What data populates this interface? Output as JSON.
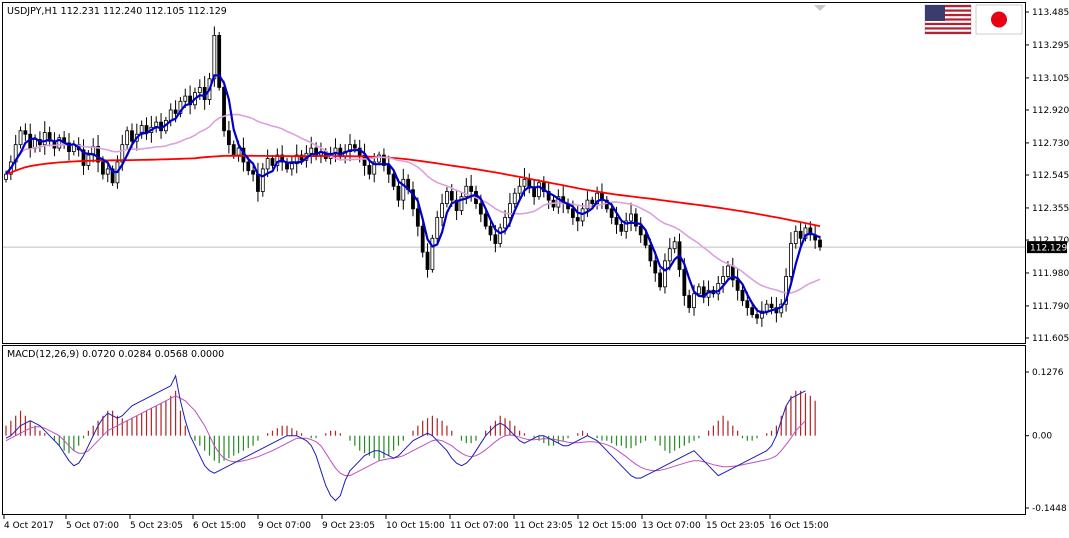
{
  "chart_data": {
    "type": "candlestick",
    "main_panel": {
      "header": "USDJPY,H1  112.231 112.240 112.105 112.129",
      "y_ticks": [
        "113.485",
        "113.295",
        "113.105",
        "112.920",
        "112.730",
        "112.545",
        "112.355",
        "112.170",
        "111.980",
        "111.790",
        "111.605"
      ],
      "ylim": [
        111.605,
        113.485
      ],
      "current_price_label": "112.129",
      "current_price": 112.129,
      "close_series": [
        112.55,
        112.62,
        112.72,
        112.8,
        112.78,
        112.7,
        112.75,
        112.72,
        112.79,
        112.74,
        112.7,
        112.76,
        112.73,
        112.68,
        112.72,
        112.69,
        112.6,
        112.66,
        112.71,
        112.62,
        112.55,
        112.58,
        112.5,
        112.62,
        112.72,
        112.8,
        112.74,
        112.78,
        112.83,
        112.79,
        112.82,
        112.85,
        112.8,
        112.86,
        112.92,
        112.9,
        112.97,
        113.0,
        112.95,
        113.02,
        113.05,
        112.98,
        113.1,
        113.35,
        113.05,
        112.8,
        112.72,
        112.66,
        112.7,
        112.62,
        112.57,
        112.55,
        112.45,
        112.58,
        112.64,
        112.6,
        112.66,
        112.62,
        112.58,
        112.61,
        112.66,
        112.63,
        112.67,
        112.7,
        112.66,
        112.68,
        112.64,
        112.67,
        112.7,
        112.65,
        112.68,
        112.72,
        112.7,
        112.66,
        112.6,
        112.55,
        112.62,
        112.66,
        112.6,
        112.55,
        112.48,
        112.4,
        112.52,
        112.46,
        112.35,
        112.25,
        112.1,
        112.0,
        112.18,
        112.3,
        112.38,
        112.45,
        112.4,
        112.34,
        112.42,
        112.48,
        112.45,
        112.38,
        112.32,
        112.25,
        112.2,
        112.15,
        112.24,
        112.3,
        112.38,
        112.44,
        112.48,
        112.52,
        112.47,
        112.42,
        112.5,
        112.45,
        112.4,
        112.36,
        112.42,
        112.38,
        112.35,
        112.3,
        112.28,
        112.35,
        112.4,
        112.38,
        112.44,
        112.4,
        112.35,
        112.3,
        112.26,
        112.22,
        112.28,
        112.32,
        112.25,
        112.2,
        112.14,
        112.05,
        111.98,
        111.9,
        112.05,
        112.12,
        112.16,
        112.0,
        111.85,
        111.78,
        111.86,
        111.9,
        111.84,
        111.88,
        111.86,
        111.92,
        111.96,
        112.02,
        111.94,
        111.88,
        111.82,
        111.78,
        111.74,
        111.72,
        111.76,
        111.8,
        111.78,
        111.75,
        111.8,
        111.96,
        112.15,
        112.22,
        112.18,
        112.24,
        112.2,
        112.17,
        112.13
      ],
      "series": [
        {
          "name": "SMA fast",
          "color": "#0000cc",
          "width": 2.2,
          "period": 4
        },
        {
          "name": "SMA mid",
          "color": "#dda0dd",
          "width": 1.6,
          "period": 24
        },
        {
          "name": "SMA slow",
          "color": "#ff0000",
          "width": 1.8,
          "period": 200
        }
      ],
      "colors": {
        "candle": "#000000",
        "grid_line": "#c0c0c0"
      }
    },
    "macd_panel": {
      "header": "MACD(12,26,9) 0.0720 0.0284 0.0568 0.0000",
      "y_ticks": [
        "0.1276",
        "0.00",
        "-0.1448"
      ],
      "ylim": [
        -0.1448,
        0.1276
      ],
      "histogram": [
        0.02,
        0.03,
        0.04,
        0.05,
        0.04,
        0.03,
        0.02,
        0.01,
        0.005,
        0.0,
        -0.01,
        -0.02,
        -0.03,
        -0.035,
        -0.03,
        -0.02,
        -0.005,
        0.01,
        0.02,
        0.03,
        0.04,
        0.05,
        0.05,
        0.04,
        0.035,
        0.03,
        0.035,
        0.04,
        0.045,
        0.05,
        0.055,
        0.06,
        0.065,
        0.07,
        0.08,
        0.09,
        0.05,
        0.02,
        0.0,
        -0.01,
        -0.02,
        -0.03,
        -0.04,
        -0.05,
        -0.055,
        -0.05,
        -0.045,
        -0.04,
        -0.035,
        -0.03,
        -0.025,
        -0.02,
        -0.01,
        0.0,
        0.005,
        0.01,
        0.015,
        0.02,
        0.02,
        0.015,
        0.01,
        0.005,
        0.0,
        -0.005,
        -0.005,
        -0.0,
        0.005,
        0.01,
        0.01,
        0.005,
        0.0,
        -0.01,
        -0.02,
        -0.03,
        -0.035,
        -0.04,
        -0.045,
        -0.05,
        -0.045,
        -0.04,
        -0.03,
        -0.02,
        -0.01,
        0.0,
        0.01,
        0.02,
        0.03,
        0.035,
        0.04,
        0.035,
        0.03,
        0.02,
        0.01,
        0.0,
        -0.01,
        -0.015,
        -0.015,
        -0.01,
        0.0,
        0.01,
        0.02,
        0.03,
        0.04,
        0.035,
        0.03,
        0.02,
        0.01,
        0.005,
        0.0,
        -0.005,
        -0.01,
        -0.015,
        -0.02,
        -0.02,
        -0.015,
        -0.01,
        -0.005,
        0.0,
        0.005,
        0.01,
        0.005,
        0.0,
        -0.005,
        -0.01,
        -0.01,
        -0.015,
        -0.02,
        -0.02,
        -0.025,
        -0.025,
        -0.02,
        -0.015,
        -0.01,
        0.0,
        -0.01,
        -0.02,
        -0.03,
        -0.035,
        -0.03,
        -0.025,
        -0.02,
        -0.015,
        -0.01,
        -0.005,
        0.0,
        0.01,
        0.02,
        0.03,
        0.04,
        0.03,
        0.02,
        0.01,
        -0.005,
        -0.01,
        -0.01,
        -0.005,
        0.0,
        0.005,
        0.01,
        0.02,
        0.04,
        0.06,
        0.08,
        0.09,
        0.09,
        0.085,
        0.08,
        0.07
      ],
      "macd_line": [
        -0.005,
        0.0,
        0.01,
        0.02,
        0.025,
        0.03,
        0.025,
        0.02,
        0.01,
        0.0,
        -0.01,
        -0.02,
        -0.035,
        -0.05,
        -0.06,
        -0.055,
        -0.04,
        -0.02,
        0.0,
        0.02,
        0.035,
        0.045,
        0.04,
        0.035,
        0.04,
        0.05,
        0.06,
        0.065,
        0.07,
        0.075,
        0.08,
        0.085,
        0.09,
        0.095,
        0.1,
        0.12,
        0.07,
        0.03,
        0.0,
        -0.02,
        -0.04,
        -0.06,
        -0.07,
        -0.075,
        -0.07,
        -0.065,
        -0.06,
        -0.055,
        -0.05,
        -0.045,
        -0.04,
        -0.035,
        -0.03,
        -0.025,
        -0.02,
        -0.015,
        -0.01,
        -0.005,
        0.0,
        0.0,
        0.0,
        -0.005,
        -0.01,
        -0.02,
        -0.04,
        -0.07,
        -0.1,
        -0.12,
        -0.13,
        -0.12,
        -0.09,
        -0.07,
        -0.06,
        -0.05,
        -0.04,
        -0.035,
        -0.03,
        -0.03,
        -0.035,
        -0.04,
        -0.045,
        -0.04,
        -0.03,
        -0.02,
        -0.01,
        -0.005,
        0.0,
        0.005,
        0.0,
        -0.01,
        -0.02,
        -0.03,
        -0.045,
        -0.055,
        -0.06,
        -0.055,
        -0.045,
        -0.03,
        -0.015,
        0.0,
        0.01,
        0.02,
        0.025,
        0.02,
        0.01,
        0.0,
        -0.01,
        -0.015,
        -0.01,
        -0.005,
        0.0,
        0.0,
        -0.005,
        -0.01,
        -0.015,
        -0.02,
        -0.02,
        -0.015,
        -0.01,
        -0.005,
        0.0,
        -0.005,
        -0.01,
        -0.02,
        -0.03,
        -0.04,
        -0.05,
        -0.06,
        -0.07,
        -0.08,
        -0.085,
        -0.085,
        -0.08,
        -0.075,
        -0.07,
        -0.065,
        -0.06,
        -0.055,
        -0.05,
        -0.045,
        -0.04,
        -0.035,
        -0.03,
        -0.04,
        -0.05,
        -0.06,
        -0.07,
        -0.08,
        -0.075,
        -0.07,
        -0.065,
        -0.06,
        -0.055,
        -0.05,
        -0.045,
        -0.04,
        -0.035,
        -0.03,
        -0.02,
        0.0,
        0.03,
        0.06,
        0.075,
        0.08,
        0.085,
        0.09
      ],
      "signal_line": [
        -0.01,
        -0.005,
        0.0,
        0.005,
        0.01,
        0.015,
        0.018,
        0.018,
        0.015,
        0.01,
        0.005,
        0.0,
        -0.01,
        -0.02,
        -0.03,
        -0.035,
        -0.035,
        -0.03,
        -0.02,
        -0.01,
        0.0,
        0.01,
        0.015,
        0.02,
        0.025,
        0.03,
        0.035,
        0.04,
        0.045,
        0.05,
        0.055,
        0.06,
        0.065,
        0.07,
        0.075,
        0.08,
        0.075,
        0.07,
        0.06,
        0.05,
        0.035,
        0.02,
        0.0,
        -0.02,
        -0.035,
        -0.045,
        -0.05,
        -0.052,
        -0.052,
        -0.05,
        -0.048,
        -0.045,
        -0.042,
        -0.038,
        -0.034,
        -0.03,
        -0.025,
        -0.02,
        -0.015,
        -0.01,
        -0.005,
        -0.005,
        -0.005,
        -0.008,
        -0.012,
        -0.02,
        -0.035,
        -0.05,
        -0.065,
        -0.075,
        -0.08,
        -0.08,
        -0.075,
        -0.07,
        -0.065,
        -0.06,
        -0.055,
        -0.05,
        -0.048,
        -0.046,
        -0.045,
        -0.043,
        -0.04,
        -0.035,
        -0.03,
        -0.025,
        -0.02,
        -0.015,
        -0.01,
        -0.008,
        -0.01,
        -0.015,
        -0.02,
        -0.028,
        -0.035,
        -0.04,
        -0.042,
        -0.04,
        -0.035,
        -0.028,
        -0.02,
        -0.012,
        -0.005,
        0.0,
        0.002,
        0.0,
        -0.003,
        -0.006,
        -0.008,
        -0.008,
        -0.007,
        -0.006,
        -0.006,
        -0.007,
        -0.009,
        -0.011,
        -0.013,
        -0.014,
        -0.014,
        -0.013,
        -0.012,
        -0.012,
        -0.013,
        -0.015,
        -0.018,
        -0.022,
        -0.028,
        -0.035,
        -0.042,
        -0.05,
        -0.057,
        -0.063,
        -0.067,
        -0.069,
        -0.07,
        -0.069,
        -0.067,
        -0.064,
        -0.061,
        -0.058,
        -0.055,
        -0.052,
        -0.05,
        -0.05,
        -0.052,
        -0.055,
        -0.058,
        -0.06,
        -0.062,
        -0.062,
        -0.061,
        -0.06,
        -0.058,
        -0.056,
        -0.054,
        -0.052,
        -0.05,
        -0.048,
        -0.045,
        -0.04,
        -0.03,
        -0.018,
        -0.005,
        0.01,
        0.02,
        0.03
      ],
      "colors": {
        "hist_positive": "#b22222",
        "hist_negative": "#228b22",
        "macd": "#1e1eb4",
        "signal": "#c050c0"
      }
    },
    "x_tick_labels": [
      "4 Oct 2017",
      "5 Oct 07:00",
      "5 Oct 23:05",
      "6 Oct 15:00",
      "9 Oct 07:00",
      "9 Oct 23:05",
      "10 Oct 15:00",
      "11 Oct 07:00",
      "11 Oct 23:05",
      "12 Oct 15:00",
      "13 Oct 07:00",
      "15 Oct 23:05",
      "16 Oct 15:00"
    ],
    "flags": [
      {
        "name": "us-flag-icon",
        "colors": {
          "red": "#b22234",
          "white": "#ffffff",
          "blue": "#3c3b6e"
        }
      },
      {
        "name": "japan-flag-icon",
        "colors": {
          "red": "#e60012",
          "white": "#ffffff"
        }
      }
    ]
  }
}
